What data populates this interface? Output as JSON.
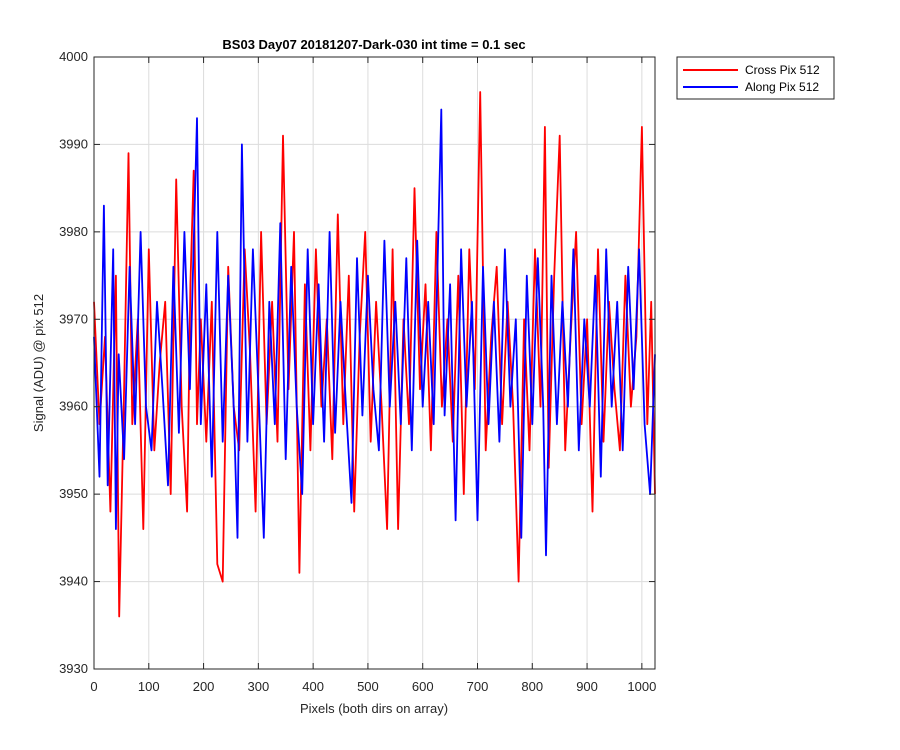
{
  "chart_data": {
    "type": "line",
    "title": "BS03 Day07 20181207-Dark-030 int time = 0.1 sec",
    "xlabel": "Pixels (both dirs on array)",
    "ylabel": "Signal (ADU) @ pix 512",
    "xlim": [
      0,
      1024
    ],
    "ylim": [
      3930,
      4000
    ],
    "xticks": [
      0,
      100,
      200,
      300,
      400,
      500,
      600,
      700,
      800,
      900,
      1000
    ],
    "yticks": [
      3930,
      3940,
      3950,
      3960,
      3970,
      3980,
      3990,
      4000
    ],
    "grid": true,
    "legend_position": "outside-top-right",
    "series": [
      {
        "name": "Cross Pix 512",
        "color": "#ff0000",
        "x": [
          0,
          10,
          20,
          30,
          40,
          46,
          55,
          63,
          70,
          80,
          90,
          100,
          110,
          120,
          130,
          140,
          150,
          160,
          170,
          176,
          182,
          188,
          195,
          205,
          215,
          225,
          235,
          245,
          255,
          265,
          275,
          285,
          295,
          305,
          315,
          325,
          335,
          345,
          355,
          365,
          375,
          385,
          395,
          405,
          415,
          425,
          435,
          445,
          455,
          465,
          475,
          485,
          495,
          505,
          515,
          525,
          535,
          545,
          555,
          565,
          575,
          585,
          595,
          605,
          615,
          625,
          635,
          645,
          655,
          665,
          675,
          685,
          695,
          705,
          715,
          725,
          735,
          745,
          755,
          765,
          775,
          785,
          795,
          805,
          815,
          823,
          830,
          840,
          850,
          860,
          870,
          880,
          890,
          900,
          910,
          920,
          930,
          940,
          950,
          960,
          970,
          980,
          990,
          1000,
          1010,
          1017,
          1024
        ],
        "values": [
          3972,
          3958,
          3968,
          3948,
          3975,
          3936,
          3962,
          3989,
          3958,
          3970,
          3946,
          3978,
          3955,
          3965,
          3972,
          3950,
          3986,
          3960,
          3948,
          3974,
          3987,
          3958,
          3970,
          3956,
          3972,
          3942,
          3940,
          3976,
          3960,
          3955,
          3978,
          3966,
          3948,
          3980,
          3958,
          3972,
          3956,
          3991,
          3962,
          3980,
          3941,
          3974,
          3955,
          3978,
          3960,
          3970,
          3954,
          3982,
          3958,
          3975,
          3948,
          3968,
          3980,
          3956,
          3972,
          3960,
          3946,
          3978,
          3946,
          3970,
          3958,
          3985,
          3962,
          3974,
          3955,
          3980,
          3960,
          3970,
          3956,
          3975,
          3950,
          3978,
          3962,
          3996,
          3955,
          3968,
          3976,
          3958,
          3972,
          3960,
          3940,
          3970,
          3955,
          3978,
          3960,
          3992,
          3953,
          3975,
          3991,
          3955,
          3968,
          3980,
          3958,
          3970,
          3948,
          3978,
          3956,
          3972,
          3962,
          3955,
          3975,
          3960,
          3968,
          3992,
          3958,
          3972,
          3950
        ]
      },
      {
        "name": "Along Pix 512",
        "color": "#0000ff",
        "x": [
          0,
          10,
          18,
          25,
          35,
          40,
          45,
          55,
          65,
          75,
          85,
          95,
          105,
          115,
          125,
          135,
          145,
          155,
          165,
          175,
          188,
          195,
          205,
          215,
          225,
          235,
          245,
          255,
          262,
          270,
          280,
          290,
          300,
          310,
          320,
          330,
          340,
          350,
          360,
          370,
          380,
          390,
          400,
          410,
          420,
          430,
          440,
          450,
          460,
          470,
          480,
          490,
          500,
          510,
          520,
          530,
          540,
          550,
          560,
          570,
          580,
          590,
          600,
          610,
          620,
          634,
          640,
          650,
          660,
          670,
          680,
          690,
          700,
          710,
          720,
          730,
          740,
          750,
          760,
          770,
          780,
          790,
          800,
          810,
          820,
          825,
          835,
          845,
          855,
          865,
          875,
          885,
          895,
          905,
          915,
          925,
          935,
          945,
          955,
          965,
          975,
          985,
          995,
          1005,
          1015,
          1024
        ],
        "values": [
          3968,
          3952,
          3983,
          3951,
          3978,
          3946,
          3966,
          3954,
          3976,
          3958,
          3980,
          3960,
          3955,
          3972,
          3962,
          3951,
          3976,
          3957,
          3980,
          3962,
          3993,
          3958,
          3974,
          3952,
          3980,
          3956,
          3975,
          3960,
          3945,
          3990,
          3956,
          3978,
          3962,
          3945,
          3972,
          3958,
          3981,
          3954,
          3976,
          3960,
          3950,
          3978,
          3958,
          3974,
          3956,
          3980,
          3957,
          3972,
          3960,
          3949,
          3977,
          3959,
          3975,
          3962,
          3955,
          3979,
          3960,
          3972,
          3958,
          3977,
          3955,
          3979,
          3960,
          3972,
          3958,
          3994,
          3959,
          3974,
          3947,
          3978,
          3960,
          3972,
          3947,
          3976,
          3958,
          3972,
          3956,
          3978,
          3960,
          3970,
          3945,
          3975,
          3958,
          3977,
          3960,
          3943,
          3975,
          3958,
          3972,
          3960,
          3978,
          3955,
          3970,
          3960,
          3975,
          3952,
          3978,
          3960,
          3972,
          3955,
          3976,
          3962,
          3978,
          3958,
          3950,
          3966
        ]
      }
    ]
  }
}
